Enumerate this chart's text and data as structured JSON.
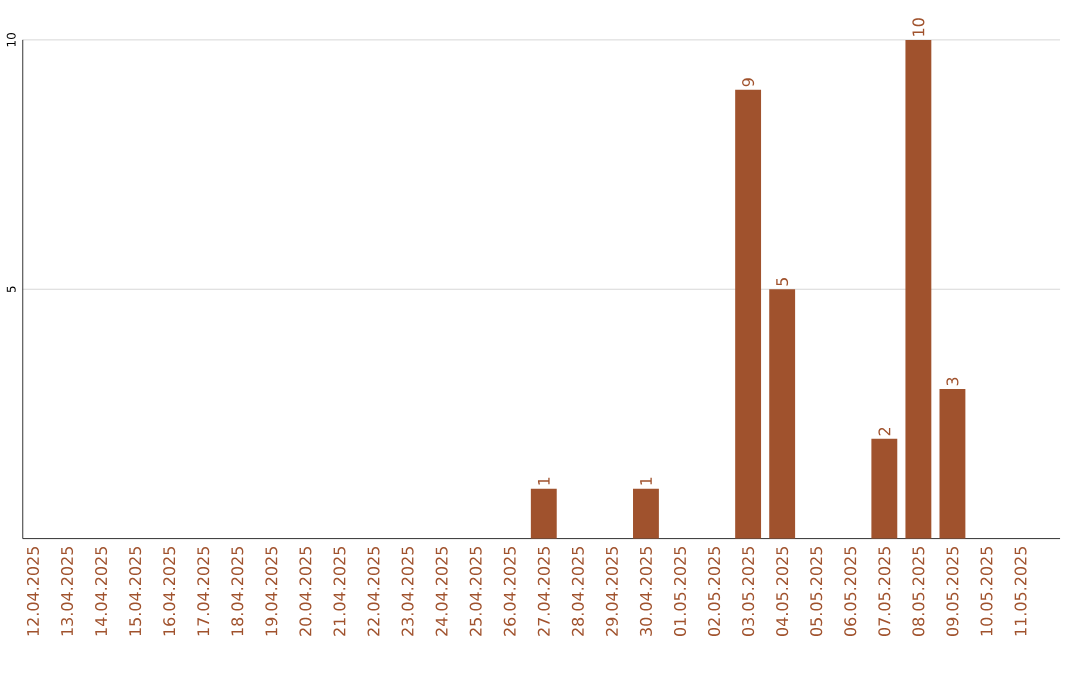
{
  "chart_data": {
    "type": "bar",
    "categories": [
      "12.04.2025",
      "13.04.2025",
      "14.04.2025",
      "15.04.2025",
      "16.04.2025",
      "17.04.2025",
      "18.04.2025",
      "19.04.2025",
      "20.04.2025",
      "21.04.2025",
      "22.04.2025",
      "23.04.2025",
      "24.04.2025",
      "25.04.2025",
      "26.04.2025",
      "27.04.2025",
      "28.04.2025",
      "29.04.2025",
      "30.04.2025",
      "01.05.2025",
      "02.05.2025",
      "03.05.2025",
      "04.05.2025",
      "05.05.2025",
      "06.05.2025",
      "07.05.2025",
      "08.05.2025",
      "09.05.2025",
      "10.05.2025",
      "11.05.2025"
    ],
    "values": [
      0,
      0,
      0,
      0,
      0,
      0,
      0,
      0,
      0,
      0,
      0,
      0,
      0,
      0,
      0,
      1,
      0,
      0,
      1,
      0,
      0,
      9,
      5,
      0,
      0,
      2,
      10,
      3,
      0,
      0
    ],
    "value_labels": [
      null,
      null,
      null,
      null,
      null,
      null,
      null,
      null,
      null,
      null,
      null,
      null,
      null,
      null,
      null,
      "1",
      null,
      null,
      "1",
      null,
      null,
      "9",
      "5",
      null,
      null,
      "2",
      "10",
      "3",
      null,
      null
    ],
    "color": "#a0522d",
    "ylim": [
      0,
      10
    ],
    "yticks": [
      5,
      10
    ],
    "grid": "y"
  }
}
